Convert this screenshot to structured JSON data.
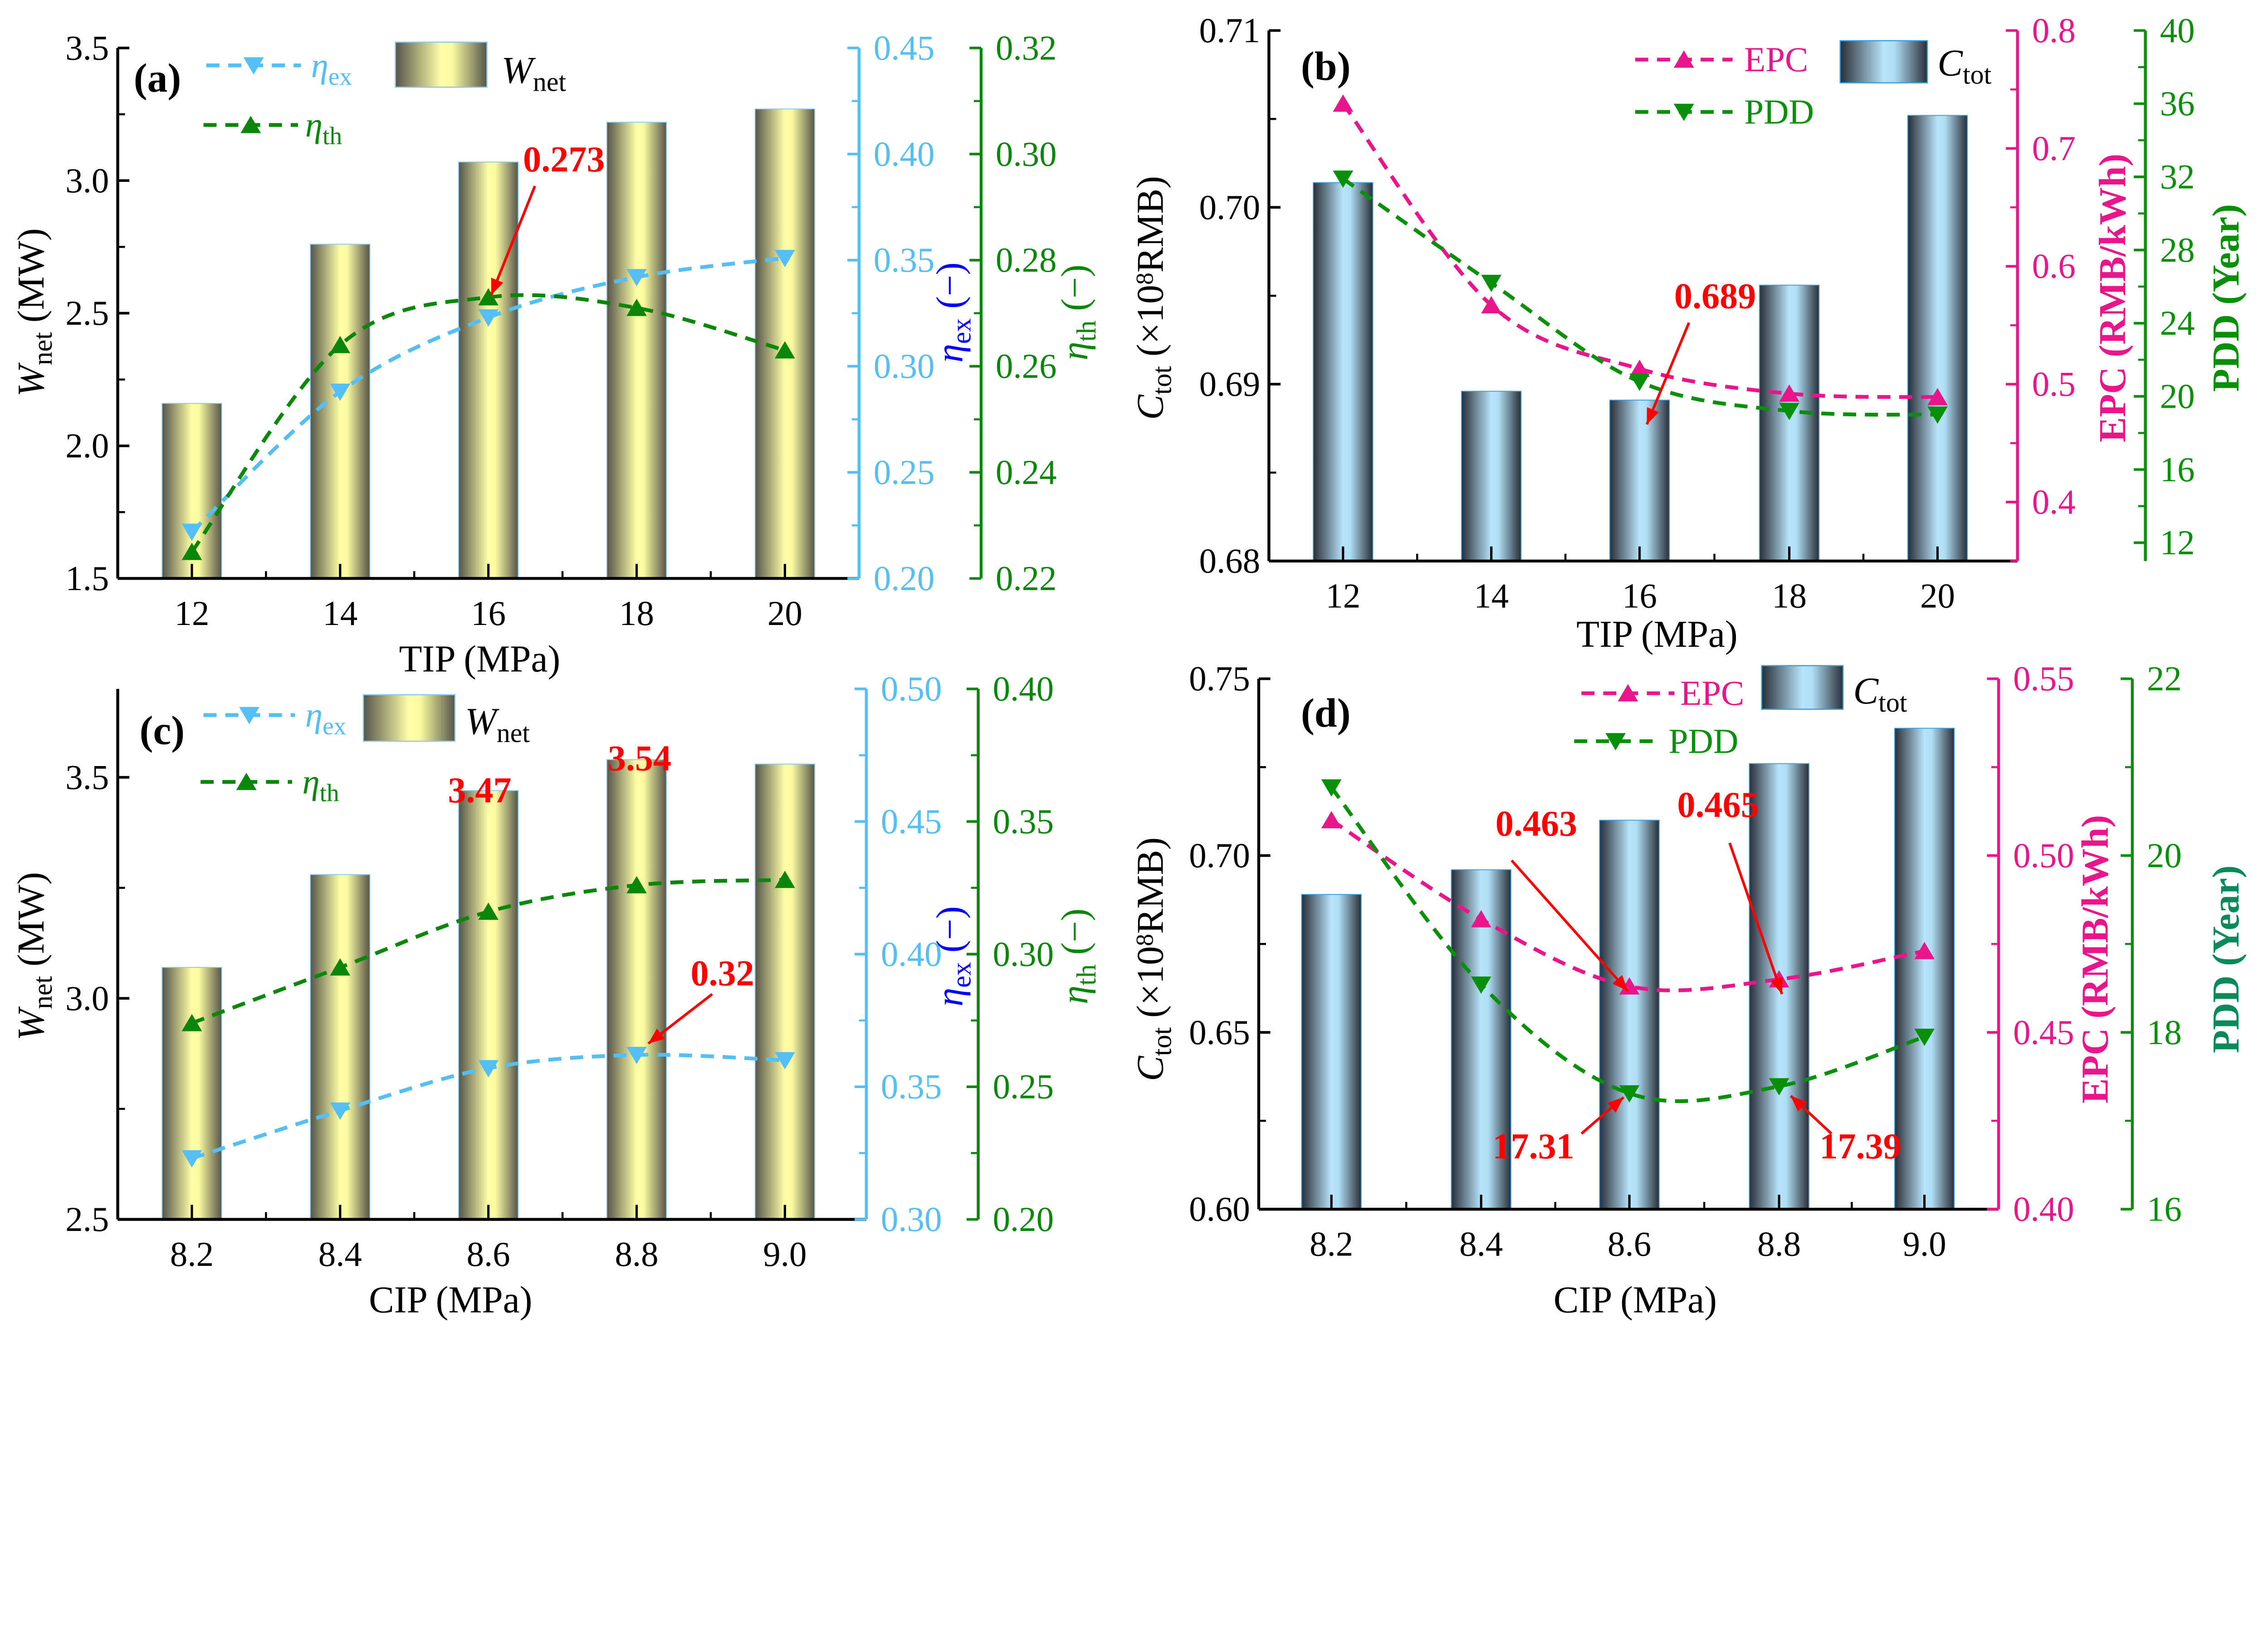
{
  "colors": {
    "eta_ex": "#55BEF5",
    "eta_th": "#0A870A",
    "epc": "#E8168A",
    "pdd": "#0A8F0A",
    "pdd_axis_d": "#0A8A5A",
    "annotation": "#FF0000",
    "eta_ex_title": "#0000FF"
  },
  "chart_data": [
    {
      "panel_label": "(a)",
      "type": "bar+line",
      "xlabel": "TIP (MPa)",
      "categories": [
        "12",
        "14",
        "16",
        "18",
        "20"
      ],
      "axes": {
        "left": {
          "title": {
            "main": "W",
            "sub": "net",
            "tail": " (MW)"
          },
          "range": [
            1.5,
            3.5
          ],
          "ticks": [
            "1.5",
            "2.0",
            "2.5",
            "3.0",
            "3.5"
          ]
        },
        "right1": {
          "title": {
            "main": "η",
            "sub": "ex",
            "tail": " (−)"
          },
          "range": [
            0.2,
            0.45
          ],
          "ticks": [
            "0.20",
            "0.25",
            "0.30",
            "0.35",
            "0.40",
            "0.45"
          ]
        },
        "right2": {
          "title": {
            "main": "η",
            "sub": "th",
            "tail": " (−)"
          },
          "range": [
            0.22,
            0.32
          ],
          "ticks": [
            "0.22",
            "0.24",
            "0.26",
            "0.28",
            "0.30",
            "0.32"
          ]
        }
      },
      "series": [
        {
          "name": {
            "main": "W",
            "sub": "net"
          },
          "type": "bar",
          "axis": "left",
          "values": [
            2.16,
            2.76,
            3.07,
            3.22,
            3.27
          ]
        },
        {
          "name": {
            "main": "η",
            "sub": "ex"
          },
          "type": "line",
          "marker": "triangle-down",
          "axis": "right1",
          "values": [
            0.222,
            0.288,
            0.323,
            0.342,
            0.351
          ]
        },
        {
          "name": {
            "main": "η",
            "sub": "th"
          },
          "type": "line",
          "marker": "triangle-up",
          "axis": "right2",
          "values": [
            0.225,
            0.264,
            0.273,
            0.271,
            0.263
          ]
        }
      ],
      "annotations": [
        {
          "text": "0.273"
        }
      ]
    },
    {
      "panel_label": "(b)",
      "type": "bar+line",
      "xlabel": "TIP (MPa)",
      "categories": [
        "12",
        "14",
        "16",
        "18",
        "20"
      ],
      "axes": {
        "left": {
          "title": {
            "main": "C",
            "sub": "tot",
            "tail": " (×10",
            "sup": "8",
            "tail2": "RMB)"
          },
          "range": [
            0.68,
            0.71
          ],
          "ticks": [
            "0.68",
            "0.69",
            "0.70",
            "0.71"
          ]
        },
        "right1": {
          "title": {
            "main": "EPC (RMB/kWh)"
          },
          "range": [
            0.35,
            0.8
          ],
          "ticks": [
            "0.4",
            "0.5",
            "0.6",
            "0.7",
            "0.8"
          ]
        },
        "right2": {
          "title": {
            "main": "PDD (Year)"
          },
          "range": [
            11,
            40
          ],
          "ticks": [
            "12",
            "16",
            "20",
            "24",
            "28",
            "32",
            "36",
            "40"
          ]
        }
      },
      "series": [
        {
          "name": {
            "main": "C",
            "sub": "tot"
          },
          "type": "bar",
          "axis": "left",
          "values": [
            0.7014,
            0.6896,
            0.6891,
            0.6956,
            0.7052
          ]
        },
        {
          "name": {
            "main": "EPC"
          },
          "type": "line",
          "marker": "triangle-up",
          "axis": "right1",
          "values": [
            0.738,
            0.567,
            0.513,
            0.492,
            0.489
          ]
        },
        {
          "name": {
            "main": "PDD"
          },
          "type": "line",
          "marker": "triangle-down",
          "axis": "right2",
          "values": [
            31.9,
            26.2,
            20.8,
            19.2,
            19.0
          ]
        }
      ],
      "annotations": [
        {
          "text": "0.689"
        }
      ]
    },
    {
      "panel_label": "(c)",
      "type": "bar+line",
      "xlabel": "CIP (MPa)",
      "categories": [
        "8.2",
        "8.4",
        "8.6",
        "8.8",
        "9.0"
      ],
      "axes": {
        "left": {
          "title": {
            "main": "W",
            "sub": "net",
            "tail": " (MW)"
          },
          "range": [
            2.5,
            3.7
          ],
          "ticks": [
            "2.5",
            "3.0",
            "3.5"
          ]
        },
        "right1": {
          "title": {
            "main": "η",
            "sub": "ex",
            "tail": " (−)"
          },
          "range": [
            0.3,
            0.5
          ],
          "ticks": [
            "0.30",
            "0.35",
            "0.40",
            "0.45",
            "0.50"
          ]
        },
        "right2": {
          "title": {
            "main": "η",
            "sub": "th",
            "tail": " (−)"
          },
          "range": [
            0.2,
            0.4
          ],
          "ticks": [
            "0.20",
            "0.25",
            "0.30",
            "0.35",
            "0.40"
          ]
        }
      },
      "series": [
        {
          "name": {
            "main": "W",
            "sub": "net"
          },
          "type": "bar",
          "axis": "left",
          "values": [
            3.07,
            3.28,
            3.47,
            3.54,
            3.53
          ]
        },
        {
          "name": {
            "main": "η",
            "sub": "ex"
          },
          "type": "line",
          "marker": "triangle-down",
          "axis": "right1",
          "values": [
            0.323,
            0.341,
            0.357,
            0.362,
            0.36
          ]
        },
        {
          "name": {
            "main": "η",
            "sub": "th"
          },
          "type": "line",
          "marker": "triangle-up",
          "axis": "right2",
          "values": [
            0.274,
            0.295,
            0.316,
            0.326,
            0.328
          ]
        }
      ],
      "annotations": [
        {
          "text": "3.47"
        },
        {
          "text": "3.54"
        },
        {
          "text": "0.32"
        }
      ]
    },
    {
      "panel_label": "(d)",
      "type": "bar+line",
      "xlabel": "CIP (MPa)",
      "categories": [
        "8.2",
        "8.4",
        "8.6",
        "8.8",
        "9.0"
      ],
      "axes": {
        "left": {
          "title": {
            "main": "C",
            "sub": "tot",
            "tail": " (×10",
            "sup": "8",
            "tail2": "RMB)"
          },
          "range": [
            0.6,
            0.75
          ],
          "ticks": [
            "0.60",
            "0.65",
            "0.70",
            "0.75"
          ]
        },
        "right1": {
          "title": {
            "main": "EPC (RMB/kWh)"
          },
          "range": [
            0.4,
            0.55
          ],
          "ticks": [
            "0.40",
            "0.45",
            "0.50",
            "0.55"
          ]
        },
        "right2": {
          "title": {
            "main": "PDD (Year)"
          },
          "range": [
            16,
            22
          ],
          "ticks": [
            "16",
            "18",
            "20",
            "22"
          ]
        }
      },
      "series": [
        {
          "name": {
            "main": "C",
            "sub": "tot"
          },
          "type": "bar",
          "axis": "left",
          "values": [
            0.689,
            0.696,
            0.71,
            0.726,
            0.736
          ]
        },
        {
          "name": {
            "main": "EPC"
          },
          "type": "line",
          "marker": "triangle-up",
          "axis": "right1",
          "values": [
            0.51,
            0.482,
            0.463,
            0.465,
            0.473
          ]
        },
        {
          "name": {
            "main": "PDD"
          },
          "type": "line",
          "marker": "triangle-down",
          "axis": "right2",
          "values": [
            20.77,
            18.54,
            17.31,
            17.39,
            17.95
          ]
        }
      ],
      "annotations": [
        {
          "text": "0.463"
        },
        {
          "text": "0.465"
        },
        {
          "text": "17.31"
        },
        {
          "text": "17.39"
        }
      ]
    }
  ]
}
